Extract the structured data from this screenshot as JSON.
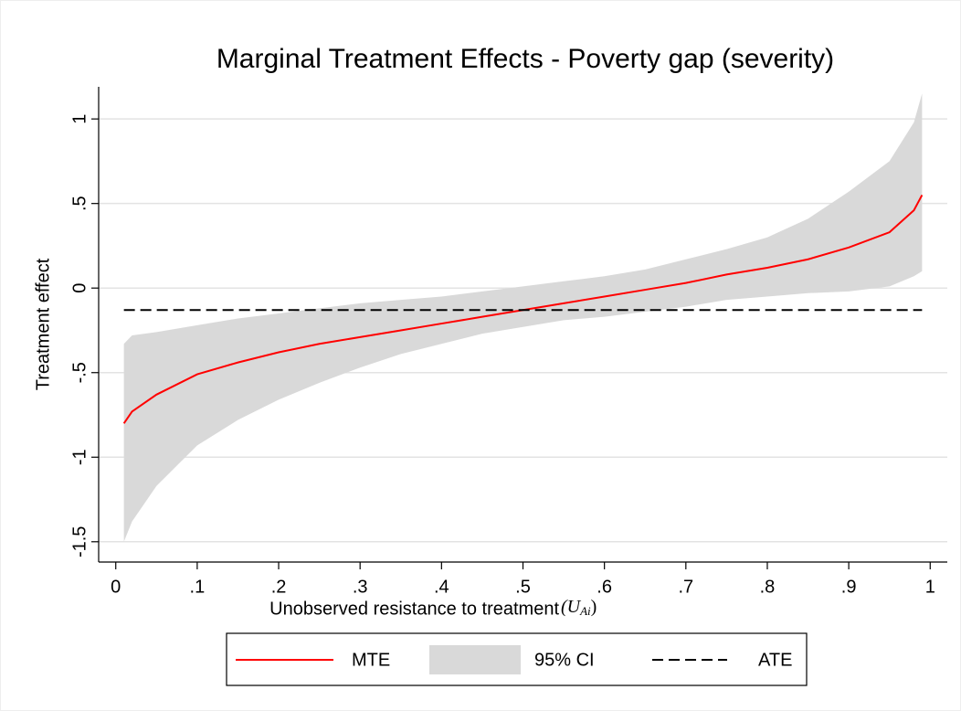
{
  "chart_data": {
    "type": "line",
    "title": "Marginal Treatment Effects - Poverty gap (severity)",
    "x_label": "Unobserved resistance to treatment",
    "x_label_symbol": "(U",
    "x_label_subscript": "Ai",
    "x_label_close": ")",
    "y_label": "Treatment effect",
    "x": [
      0.01,
      0.02,
      0.05,
      0.1,
      0.15,
      0.2,
      0.25,
      0.3,
      0.35,
      0.4,
      0.45,
      0.5,
      0.55,
      0.6,
      0.65,
      0.7,
      0.75,
      0.8,
      0.85,
      0.9,
      0.95,
      0.98,
      0.99
    ],
    "series": [
      {
        "name": "MTE",
        "color": "#ff0000",
        "values": [
          -0.8,
          -0.73,
          -0.63,
          -0.51,
          -0.44,
          -0.38,
          -0.33,
          -0.29,
          -0.25,
          -0.21,
          -0.17,
          -0.13,
          -0.09,
          -0.05,
          -0.01,
          0.03,
          0.08,
          0.12,
          0.17,
          0.24,
          0.33,
          0.46,
          0.55
        ]
      },
      {
        "name": "95% CI",
        "color": "#d9d9d9",
        "lower": [
          -1.5,
          -1.38,
          -1.17,
          -0.93,
          -0.78,
          -0.66,
          -0.56,
          -0.47,
          -0.39,
          -0.33,
          -0.27,
          -0.23,
          -0.19,
          -0.17,
          -0.14,
          -0.11,
          -0.07,
          -0.05,
          -0.03,
          -0.02,
          0.01,
          0.07,
          0.1
        ],
        "upper": [
          -0.33,
          -0.28,
          -0.26,
          -0.22,
          -0.18,
          -0.15,
          -0.12,
          -0.09,
          -0.07,
          -0.05,
          -0.02,
          0.01,
          0.04,
          0.07,
          0.11,
          0.17,
          0.23,
          0.3,
          0.41,
          0.57,
          0.75,
          0.98,
          1.15
        ]
      },
      {
        "name": "ATE",
        "color": "#000000",
        "dashed": true,
        "x": [
          0.01,
          0.99
        ],
        "values": [
          -0.13,
          -0.13
        ]
      }
    ],
    "xlim": [
      -0.021,
      1.021
    ],
    "ylim": [
      -1.62,
      1.19
    ],
    "xticks": [
      0,
      {
        "value": 0.1,
        "label": ".1"
      },
      {
        "value": 0.2,
        "label": ".2"
      },
      {
        "value": 0.3,
        "label": ".3"
      },
      {
        "value": 0.4,
        "label": ".4"
      },
      {
        "value": 0.5,
        "label": ".5"
      },
      {
        "value": 0.6,
        "label": ".6"
      },
      {
        "value": 0.7,
        "label": ".7"
      },
      {
        "value": 0.8,
        "label": ".8"
      },
      {
        "value": 0.9,
        "label": ".9"
      },
      1
    ],
    "yticks": [
      -1.5,
      -1,
      {
        "value": -0.5,
        "label": "-.5"
      },
      0,
      {
        "value": 0.5,
        "label": ".5"
      },
      1
    ],
    "grid": true,
    "legend": "bottom"
  }
}
